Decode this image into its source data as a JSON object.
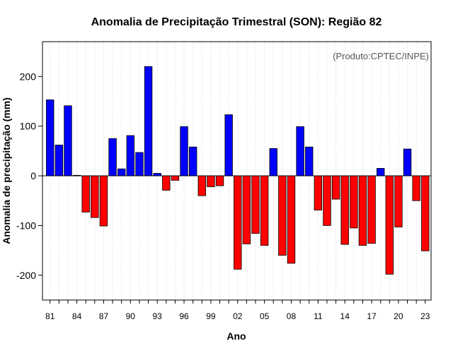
{
  "chart_data": {
    "type": "bar",
    "title": "Anomalia de Precipitação Trimestral (SON): Região 82",
    "annotation": "(Produto:CPTEC/INPE)",
    "xlabel": "Ano",
    "ylabel": "Anomalia de precipitação (mm)",
    "ylim": [
      -250,
      270
    ],
    "yticks": [
      -200,
      -100,
      0,
      100,
      200
    ],
    "x_tick_labels": [
      "81",
      "84",
      "87",
      "90",
      "93",
      "96",
      "99",
      "02",
      "05",
      "08",
      "11",
      "14",
      "17",
      "20",
      "23"
    ],
    "grid": "vertical dotted",
    "positive_color": "#0000ff",
    "negative_color": "#ff0000",
    "categories": [
      "1981",
      "1982",
      "1983",
      "1984",
      "1985",
      "1986",
      "1987",
      "1988",
      "1989",
      "1990",
      "1991",
      "1992",
      "1993",
      "1994",
      "1995",
      "1996",
      "1997",
      "1998",
      "1999",
      "2000",
      "2001",
      "2002",
      "2003",
      "2004",
      "2005",
      "2006",
      "2007",
      "2008",
      "2009",
      "2010",
      "2011",
      "2012",
      "2013",
      "2014",
      "2015",
      "2016",
      "2017",
      "2018",
      "2019",
      "2020",
      "2021",
      "2022",
      "2023"
    ],
    "values": [
      153,
      62,
      141,
      1,
      -73,
      -84,
      -101,
      75,
      14,
      81,
      47,
      220,
      5,
      -29,
      -9,
      99,
      58,
      -40,
      -22,
      -20,
      123,
      -188,
      -137,
      -116,
      -140,
      55,
      -160,
      -176,
      99,
      58,
      -69,
      -100,
      -47,
      -138,
      -105,
      -140,
      -136,
      15,
      -198,
      -103,
      54,
      -50,
      -151
    ]
  }
}
